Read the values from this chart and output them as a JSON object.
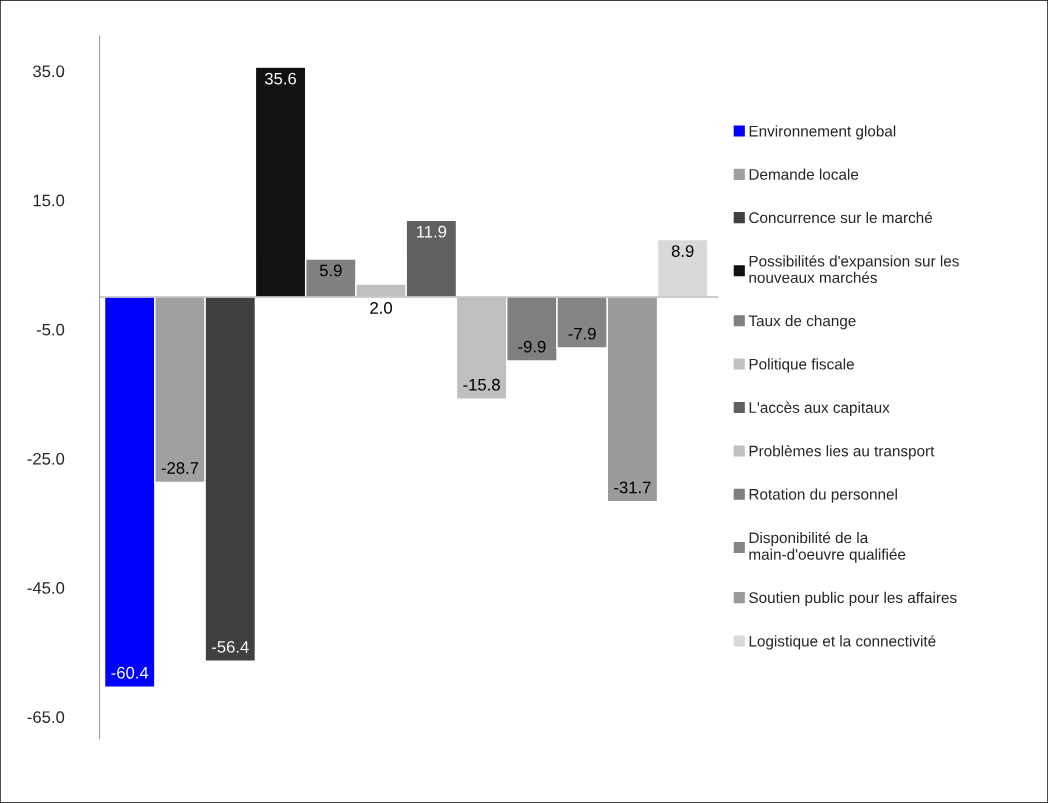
{
  "chart_data": {
    "type": "bar",
    "categories": [
      null,
      null,
      null,
      null,
      null,
      null,
      null,
      null,
      null,
      null,
      null,
      null
    ],
    "series": [
      {
        "name": "Environnement global",
        "color": "#0000ff",
        "values": [
          -60.4,
          null,
          null,
          null,
          null,
          null,
          null,
          null,
          null,
          null,
          null,
          null
        ]
      },
      {
        "name": "Demande locale",
        "color": "#a0a0a0",
        "values": [
          null,
          -28.7,
          null,
          null,
          null,
          null,
          null,
          null,
          null,
          null,
          null,
          null
        ]
      },
      {
        "name": "Concurrence sur le marché",
        "color": "#404040",
        "values": [
          null,
          null,
          -56.4,
          null,
          null,
          null,
          null,
          null,
          null,
          null,
          null,
          null
        ]
      },
      {
        "name": "Possibilités d'expansion sur les\nnouveaux marchés",
        "color": "#111111",
        "values": [
          null,
          null,
          null,
          35.6,
          null,
          null,
          null,
          null,
          null,
          null,
          null,
          null
        ]
      },
      {
        "name": "Taux de change",
        "color": "#808080",
        "values": [
          null,
          null,
          null,
          null,
          5.9,
          null,
          null,
          null,
          null,
          null,
          null,
          null
        ]
      },
      {
        "name": "Politique fiscale",
        "color": "#c0c0c0",
        "values": [
          null,
          null,
          null,
          null,
          null,
          2.0,
          null,
          null,
          null,
          null,
          null,
          null
        ],
        "value_labels": [
          null,
          null,
          null,
          null,
          null,
          "2.0",
          null,
          null,
          null,
          null,
          null,
          null
        ]
      },
      {
        "name": "L'accès aux capitaux",
        "color": "#606060",
        "values": [
          null,
          null,
          null,
          null,
          null,
          null,
          11.9,
          null,
          null,
          null,
          null,
          null
        ]
      },
      {
        "name": "Problèmes lies au transport",
        "color": "#bfbfbf",
        "values": [
          null,
          null,
          null,
          null,
          null,
          null,
          null,
          -15.8,
          null,
          null,
          null,
          null
        ]
      },
      {
        "name": "Rotation du personnel",
        "color": "#7f7f7f",
        "values": [
          null,
          null,
          null,
          null,
          null,
          null,
          null,
          null,
          -9.9,
          null,
          null,
          null
        ]
      },
      {
        "name": "Disponibilité de la\nmain-d'oeuvre qualifiée",
        "color": "#858585",
        "values": [
          null,
          null,
          null,
          null,
          null,
          null,
          null,
          null,
          null,
          -7.9,
          null,
          null
        ]
      },
      {
        "name": "Soutien public pour les affaires",
        "color": "#9a9a9a",
        "values": [
          null,
          null,
          null,
          null,
          null,
          null,
          null,
          null,
          null,
          null,
          -31.7,
          null
        ]
      },
      {
        "name": "Logistique et la connectivité",
        "color": "#d9d9d9",
        "values": [
          null,
          null,
          null,
          null,
          null,
          null,
          null,
          null,
          null,
          null,
          null,
          8.9
        ]
      }
    ],
    "ylim": [
      -68.4,
      40.4
    ],
    "yticks": [
      {
        "value": 35,
        "label": "35.0"
      },
      {
        "value": 15,
        "label": "15.0"
      },
      {
        "value": -5,
        "label": "-5.0"
      },
      {
        "value": -25,
        "label": "-25.0"
      },
      {
        "value": -45,
        "label": "-45.0"
      },
      {
        "value": -65,
        "label": "-65.0"
      }
    ],
    "tick_labels": "y",
    "data_labels": true,
    "grid": false,
    "legend": "right"
  }
}
